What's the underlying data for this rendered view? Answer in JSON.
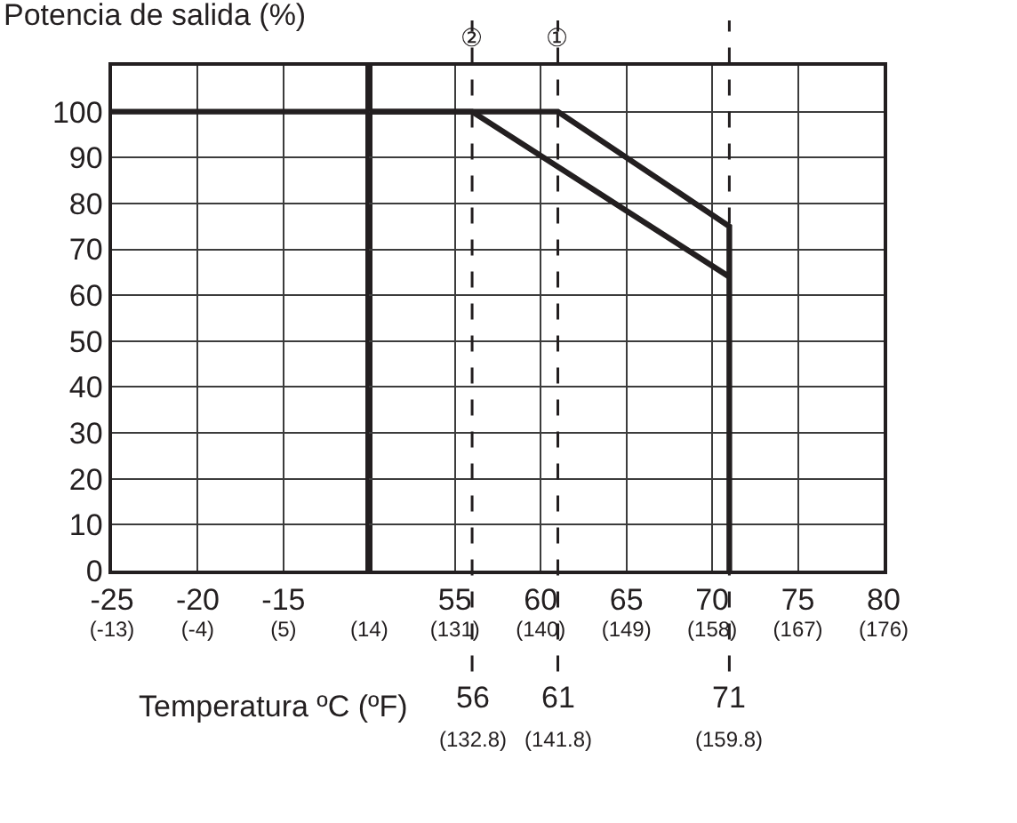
{
  "chart_data": [
    {
      "type": "line",
      "title": "Potencia de salida (%)",
      "xlim": [
        -25,
        -10
      ],
      "xticks": [
        -25,
        -20,
        -15
      ],
      "x2lim": [
        -13,
        14
      ],
      "x2ticks": [
        {
          "value": -13,
          "label": "(-13)"
        },
        {
          "value": -4,
          "label": "(-4)"
        },
        {
          "value": 5,
          "label": "(5)"
        },
        {
          "value": 14,
          "label": "(14)"
        }
      ],
      "ylim": [
        0,
        110
      ],
      "yticks": [
        0,
        10,
        20,
        30,
        40,
        50,
        60,
        70,
        80,
        90,
        100
      ],
      "grid": true,
      "marker": "none",
      "line_style": "solid",
      "series": [
        {
          "color": "#231f20",
          "x": [
            -25,
            -10
          ],
          "values": [
            100,
            100
          ]
        }
      ]
    },
    {
      "type": "line",
      "xlabel": "Temperatura ºC (ºF)",
      "xlim": [
        50,
        80
      ],
      "xticks": [
        55,
        60,
        65,
        70,
        75,
        80
      ],
      "x2lim": [
        122,
        176
      ],
      "x2ticks": [
        {
          "value": 131,
          "label": "(131)"
        },
        {
          "value": 140,
          "label": "(140)"
        },
        {
          "value": 149,
          "label": "(149)"
        },
        {
          "value": 158,
          "label": "(158)"
        },
        {
          "value": 167,
          "label": "(167)"
        },
        {
          "value": 176,
          "label": "(176)"
        }
      ],
      "ylim": [
        0,
        110
      ],
      "yticks": [
        0,
        10,
        20,
        30,
        40,
        50,
        60,
        70,
        80,
        90,
        100
      ],
      "grid": true,
      "marker": "none",
      "line_style": "solid",
      "tick_labels": "x",
      "series": [
        {
          "color": "#231f20",
          "x": [
            50,
            61,
            71,
            71
          ],
          "values": [
            100,
            100,
            75,
            0
          ]
        },
        {
          "color": "#231f20",
          "x": [
            50,
            56,
            71
          ],
          "values": [
            100,
            100,
            64
          ]
        }
      ],
      "ref_lines": [
        {
          "axis": "x",
          "value": 56,
          "label": "56\n(132.8)",
          "line_style": "dashed",
          "color": "#231f20"
        },
        {
          "axis": "x",
          "value": 61,
          "label": "61\n(141.8)",
          "line_style": "dashed",
          "color": "#231f20"
        },
        {
          "axis": "x",
          "value": 71,
          "label": "71\n(159.8)",
          "line_style": "dashed",
          "color": "#231f20"
        }
      ],
      "annotations": [
        "②",
        "①"
      ]
    }
  ]
}
